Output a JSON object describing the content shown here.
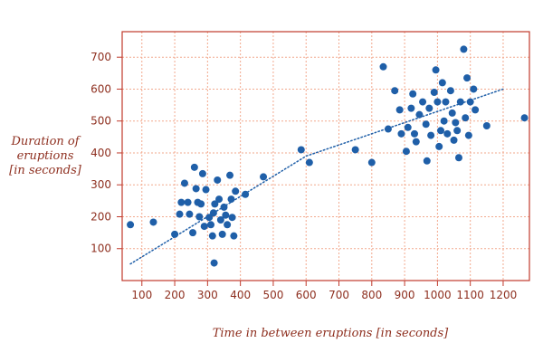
{
  "chart_data": {
    "type": "scatter",
    "xlabel": "Time in between eruptions  [in seconds]",
    "ylabel_lines": [
      "Duration of",
      "eruptions",
      "[in seconds]"
    ],
    "xlim": [
      40,
      1280
    ],
    "ylim": [
      0,
      780
    ],
    "x_ticks": [
      100,
      200,
      300,
      400,
      500,
      600,
      700,
      800,
      900,
      1000,
      1100,
      1200
    ],
    "y_ticks": [
      100,
      200,
      300,
      400,
      500,
      600,
      700
    ],
    "grid": true,
    "colors": {
      "frame": "#c0392b",
      "grid": "#f2a98e",
      "tick_text": "#8e2f1f",
      "point": "#1f5fa8",
      "trend": "#1f5fa8"
    },
    "series": [
      {
        "type": "scatter",
        "points": [
          [
            65,
            175
          ],
          [
            135,
            183
          ],
          [
            200,
            145
          ],
          [
            215,
            208
          ],
          [
            220,
            245
          ],
          [
            230,
            305
          ],
          [
            240,
            245
          ],
          [
            245,
            208
          ],
          [
            255,
            150
          ],
          [
            260,
            355
          ],
          [
            265,
            288
          ],
          [
            270,
            245
          ],
          [
            275,
            200
          ],
          [
            280,
            240
          ],
          [
            285,
            335
          ],
          [
            290,
            170
          ],
          [
            295,
            285
          ],
          [
            305,
            198
          ],
          [
            310,
            175
          ],
          [
            315,
            140
          ],
          [
            318,
            212
          ],
          [
            322,
            240
          ],
          [
            330,
            315
          ],
          [
            335,
            255
          ],
          [
            340,
            190
          ],
          [
            345,
            145
          ],
          [
            350,
            230
          ],
          [
            355,
            205
          ],
          [
            360,
            175
          ],
          [
            368,
            330
          ],
          [
            372,
            255
          ],
          [
            375,
            198
          ],
          [
            380,
            140
          ],
          [
            385,
            280
          ],
          [
            415,
            270
          ],
          [
            470,
            325
          ],
          [
            320,
            55
          ],
          [
            585,
            410
          ],
          [
            610,
            370
          ],
          [
            750,
            410
          ],
          [
            800,
            370
          ],
          [
            835,
            670
          ],
          [
            850,
            475
          ],
          [
            870,
            595
          ],
          [
            885,
            535
          ],
          [
            890,
            460
          ],
          [
            905,
            405
          ],
          [
            910,
            480
          ],
          [
            920,
            540
          ],
          [
            925,
            585
          ],
          [
            930,
            460
          ],
          [
            935,
            435
          ],
          [
            945,
            520
          ],
          [
            955,
            560
          ],
          [
            965,
            490
          ],
          [
            968,
            375
          ],
          [
            975,
            540
          ],
          [
            980,
            455
          ],
          [
            990,
            590
          ],
          [
            995,
            660
          ],
          [
            1000,
            560
          ],
          [
            1005,
            420
          ],
          [
            1010,
            470
          ],
          [
            1015,
            620
          ],
          [
            1020,
            500
          ],
          [
            1025,
            560
          ],
          [
            1030,
            460
          ],
          [
            1040,
            595
          ],
          [
            1045,
            525
          ],
          [
            1050,
            440
          ],
          [
            1055,
            495
          ],
          [
            1060,
            470
          ],
          [
            1065,
            385
          ],
          [
            1070,
            560
          ],
          [
            1080,
            725
          ],
          [
            1085,
            510
          ],
          [
            1090,
            635
          ],
          [
            1095,
            455
          ],
          [
            1100,
            560
          ],
          [
            1110,
            600
          ],
          [
            1115,
            535
          ],
          [
            1150,
            485
          ],
          [
            1265,
            510
          ]
        ]
      },
      {
        "type": "line",
        "style": "dotted",
        "points": [
          [
            65,
            52
          ],
          [
            600,
            390
          ],
          [
            1200,
            600
          ]
        ]
      }
    ]
  }
}
